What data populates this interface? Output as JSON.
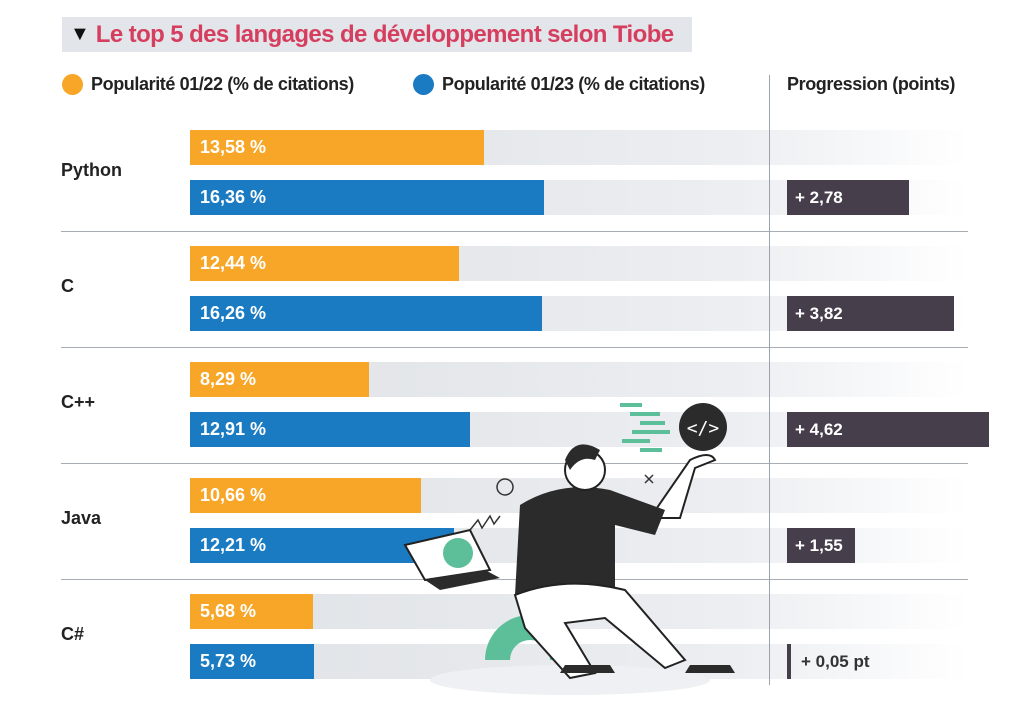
{
  "chart_data": {
    "type": "bar",
    "title": "Le top 5 des langages de développement selon Tiobe",
    "categories": [
      "Python",
      "C",
      "C++",
      "Java",
      "C#"
    ],
    "series": [
      {
        "name": "Popularité 01/22 (% de citations)",
        "color": "#f7a628",
        "values": [
          13.58,
          12.44,
          8.29,
          10.66,
          5.68
        ],
        "labels": [
          "13,58 %",
          "12,44 %",
          "8,29 %",
          "10,66 %",
          "5,68 %"
        ]
      },
      {
        "name": "Popularité 01/23 (% de citations)",
        "color": "#1a7bc3",
        "values": [
          16.36,
          16.26,
          12.91,
          12.21,
          5.73
        ],
        "labels": [
          "16,36 %",
          "16,26 %",
          "12,91 %",
          "12,21 %",
          "5,73 %"
        ]
      }
    ],
    "progression": {
      "name": "Progression (points)",
      "color": "#463e4b",
      "values": [
        2.78,
        3.82,
        4.62,
        1.55,
        0.05
      ],
      "labels": [
        "+ 2,78",
        "+ 3,82",
        "+ 4,62",
        "+ 1,55",
        "+ 0,05 pt"
      ]
    },
    "orientation": "horizontal",
    "legend": "top",
    "title_color": "#d63e5f"
  }
}
